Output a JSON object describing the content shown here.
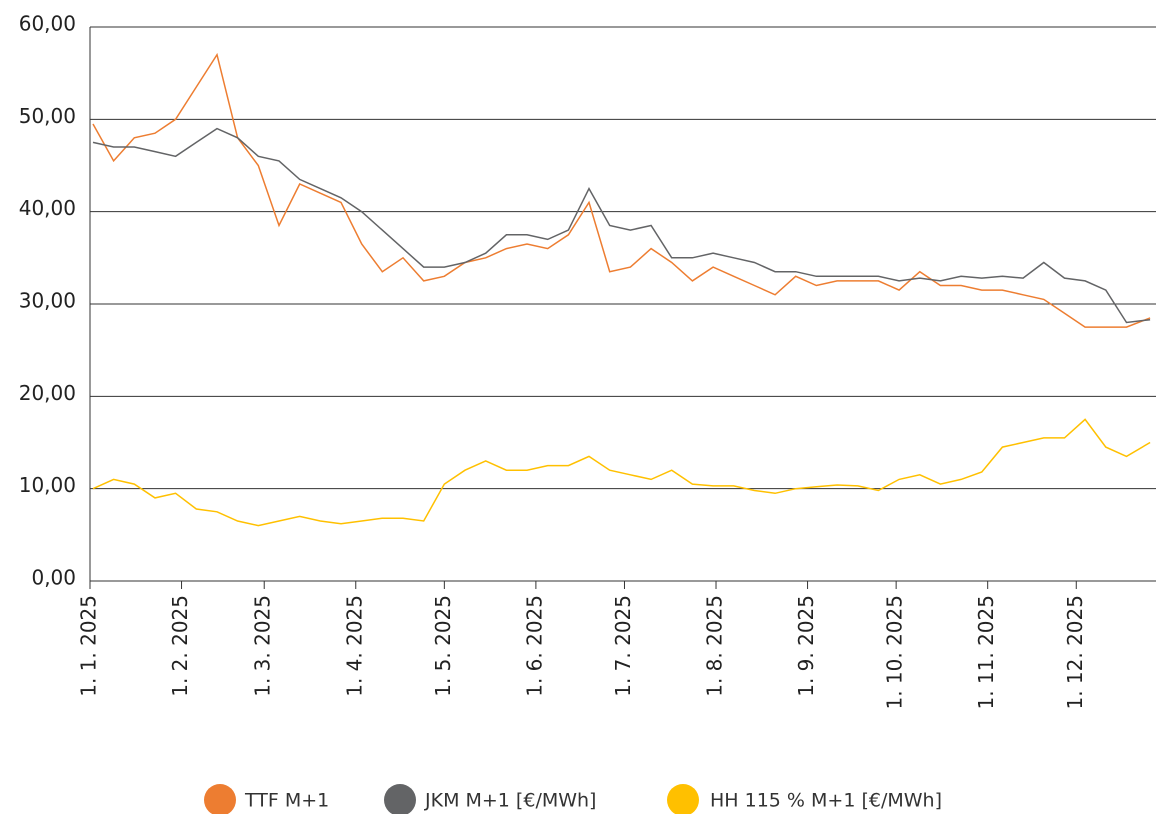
{
  "chart_data": {
    "type": "line",
    "x": [
      "2025-01-02",
      "2025-01-09",
      "2025-01-16",
      "2025-01-23",
      "2025-01-30",
      "2025-02-06",
      "2025-02-13",
      "2025-02-20",
      "2025-02-27",
      "2025-03-06",
      "2025-03-13",
      "2025-03-20",
      "2025-03-27",
      "2025-04-03",
      "2025-04-10",
      "2025-04-17",
      "2025-04-24",
      "2025-05-01",
      "2025-05-08",
      "2025-05-15",
      "2025-05-22",
      "2025-05-29",
      "2025-06-05",
      "2025-06-12",
      "2025-06-19",
      "2025-06-26",
      "2025-07-03",
      "2025-07-10",
      "2025-07-17",
      "2025-07-24",
      "2025-07-31",
      "2025-08-07",
      "2025-08-14",
      "2025-08-21",
      "2025-08-28",
      "2025-09-04",
      "2025-09-11",
      "2025-09-18",
      "2025-09-25",
      "2025-10-02",
      "2025-10-09",
      "2025-10-16",
      "2025-10-23",
      "2025-10-30",
      "2025-11-06",
      "2025-11-13",
      "2025-11-20",
      "2025-11-27",
      "2025-12-04",
      "2025-12-11",
      "2025-12-18",
      "2025-12-26"
    ],
    "series": [
      {
        "name": "TTF M+1",
        "color": "#ed7d31",
        "values": [
          49.5,
          45.5,
          48,
          48.5,
          50,
          53.5,
          57,
          48,
          45,
          38.5,
          43,
          42,
          41,
          36.5,
          33.5,
          35,
          32.5,
          33,
          34.5,
          35,
          36,
          36.5,
          36,
          37.5,
          41,
          33.5,
          34,
          36,
          34.5,
          32.5,
          34,
          33,
          32,
          31,
          33,
          32,
          32.5,
          32.5,
          32.5,
          31.5,
          33.5,
          32,
          32,
          31.5,
          31.5,
          31,
          30.5,
          29,
          27.5,
          27.5,
          27.5,
          28.5
        ]
      },
      {
        "name": "JKM M+1 [€/MWh]",
        "color": "#636466",
        "values": [
          47.5,
          47,
          47,
          46.5,
          46,
          47.5,
          49,
          48,
          46,
          45.5,
          43.5,
          42.5,
          41.5,
          40,
          38,
          36,
          34,
          34,
          34.5,
          35.5,
          37.5,
          37.5,
          37,
          38,
          42.5,
          38.5,
          38,
          38.5,
          35,
          35,
          35.5,
          35,
          34.5,
          33.5,
          33.5,
          33,
          33,
          33,
          33,
          32.5,
          32.8,
          32.5,
          33,
          32.8,
          33,
          32.8,
          34.5,
          32.8,
          32.5,
          31.5,
          28,
          28.3
        ]
      },
      {
        "name": "HH 115 % M+1 [€/MWh]",
        "color": "#ffc000",
        "values": [
          10,
          11,
          10.5,
          9,
          9.5,
          7.8,
          7.5,
          6.5,
          6,
          6.5,
          7,
          6.5,
          6.2,
          6.5,
          6.8,
          6.8,
          6.5,
          10.5,
          12,
          13,
          12,
          12,
          12.5,
          12.5,
          13.5,
          12,
          11.5,
          11,
          12,
          10.5,
          10.3,
          10.3,
          9.8,
          9.5,
          10,
          10.2,
          10.4,
          10.3,
          9.8,
          11,
          11.5,
          10.5,
          11,
          11.8,
          14.5,
          15,
          15.5,
          15.5,
          17.5,
          14.5,
          13.5,
          15
        ]
      }
    ],
    "xlim": [
      "2025-01-01",
      "2025-12-28"
    ],
    "xticks": [
      {
        "value": "2025-01-01",
        "label": "1. 1. 2025"
      },
      {
        "value": "2025-02-01",
        "label": "1. 2. 2025"
      },
      {
        "value": "2025-03-01",
        "label": "1. 3. 2025"
      },
      {
        "value": "2025-04-01",
        "label": "1. 4. 2025"
      },
      {
        "value": "2025-05-01",
        "label": "1. 5. 2025"
      },
      {
        "value": "2025-06-01",
        "label": "1. 6. 2025"
      },
      {
        "value": "2025-07-01",
        "label": "1. 7. 2025"
      },
      {
        "value": "2025-08-01",
        "label": "1. 8. 2025"
      },
      {
        "value": "2025-09-01",
        "label": "1. 9. 2025"
      },
      {
        "value": "2025-10-01",
        "label": "1. 10. 2025"
      },
      {
        "value": "2025-11-01",
        "label": "1. 11. 2025"
      },
      {
        "value": "2025-12-01",
        "label": "1. 12. 2025"
      }
    ],
    "ylim": [
      0,
      60
    ],
    "yticks": [
      {
        "value": 0,
        "label": "0,00"
      },
      {
        "value": 10,
        "label": "10,00"
      },
      {
        "value": 20,
        "label": "20,00"
      },
      {
        "value": 30,
        "label": "30,00"
      },
      {
        "value": 40,
        "label": "40,00"
      },
      {
        "value": 50,
        "label": "50,00"
      },
      {
        "value": 60,
        "label": "60,00"
      }
    ],
    "grid": true,
    "legend": "bottom"
  }
}
